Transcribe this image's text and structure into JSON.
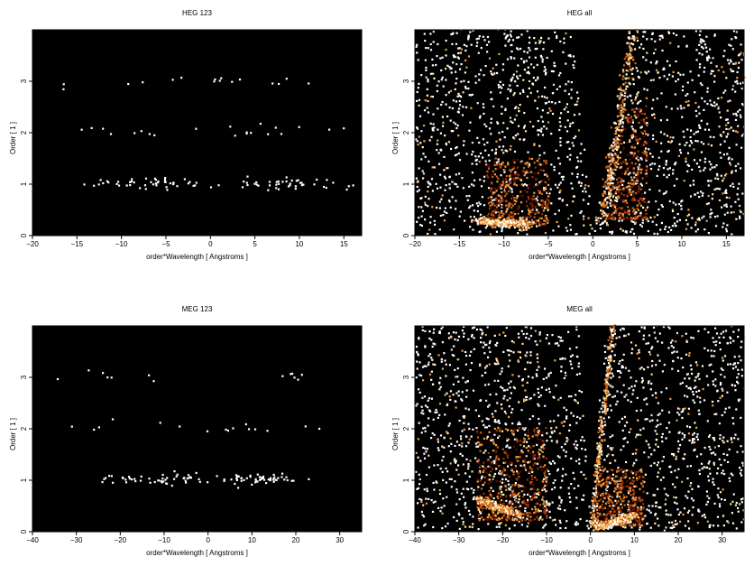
{
  "chart_data": [
    {
      "type": "heatmap",
      "title": "HEG 123",
      "xlabel": "order*Wavelength [ Angstroms ]",
      "ylabel": "Order [ 1 ]",
      "xlim": [
        -20,
        17
      ],
      "ylim": [
        0,
        4
      ],
      "xticks": [
        "−20",
        "−15",
        "−10",
        "−5",
        "0",
        "5",
        "10",
        "15"
      ],
      "xtick_values": [
        -20,
        -15,
        -10,
        -5,
        0,
        5,
        10,
        15
      ],
      "yticks": [
        "0",
        "1",
        "2",
        "3"
      ],
      "ytick_values": [
        0,
        1,
        2,
        3
      ],
      "background": "#000000",
      "density_features": [
        {
          "order": 1,
          "x_range": [
            -16,
            16
          ],
          "peak_x": [
            -8,
            8
          ],
          "density": 0.35
        },
        {
          "order": 2,
          "x_range": [
            -17,
            16
          ],
          "peak_x": [
            -10,
            5
          ],
          "density": 0.08
        },
        {
          "order": 3,
          "x_range": [
            -17,
            16
          ],
          "peak_x": [
            -5,
            5
          ],
          "density": 0.06
        }
      ]
    },
    {
      "type": "heatmap",
      "title": "HEG all",
      "xlabel": "order*Wavelength [ Angstroms ]",
      "ylabel": "Order [ 1 ]",
      "xlim": [
        -20,
        17
      ],
      "ylim": [
        0,
        4
      ],
      "xticks": [
        "−20",
        "−15",
        "−10",
        "−5",
        "0",
        "5",
        "10",
        "15"
      ],
      "xtick_values": [
        -20,
        -15,
        -10,
        -5,
        0,
        5,
        10,
        15
      ],
      "yticks": [
        "0",
        "1",
        "2",
        "3"
      ],
      "ytick_values": [
        0,
        1,
        2,
        3
      ],
      "background": "#000000",
      "colormap": [
        "#5a0a00",
        "#a03000",
        "#d06010",
        "#f0a040",
        "#ffe0a0",
        "#ffffff"
      ],
      "features": {
        "empty_wedge": {
          "apex_x": 0,
          "apex_y": 0,
          "top_x_range": [
            -2.5,
            4.5
          ]
        },
        "bright_streaks": [
          {
            "from": [
              -13,
              0.25
            ],
            "to": [
              -7,
              0.2
            ]
          },
          {
            "from": [
              1,
              0.2
            ],
            "to": [
              4.5,
              4
            ]
          }
        ],
        "warm_regions": [
          {
            "x_range": [
              -12,
              -5
            ],
            "y_range": [
              0.2,
              1.5
            ]
          },
          {
            "x_range": [
              1,
              6
            ],
            "y_range": [
              0.3,
              2.5
            ]
          }
        ]
      }
    },
    {
      "type": "heatmap",
      "title": "MEG 123",
      "xlabel": "order*Wavelength [ Angstroms ]",
      "ylabel": "Order [ 1 ]",
      "xlim": [
        -40,
        35
      ],
      "ylim": [
        0,
        4
      ],
      "xticks": [
        "−40",
        "−30",
        "−20",
        "−10",
        "0",
        "10",
        "20",
        "30"
      ],
      "xtick_values": [
        -40,
        -30,
        -20,
        -10,
        0,
        10,
        20,
        30
      ],
      "yticks": [
        "0",
        "1",
        "2",
        "3"
      ],
      "ytick_values": [
        0,
        1,
        2,
        3
      ],
      "background": "#000000",
      "density_features": [
        {
          "order": 1,
          "x_range": [
            -25,
            20
          ],
          "peak_x": [
            -12,
            12
          ],
          "density": 0.4
        },
        {
          "order": 2,
          "x_range": [
            -35,
            32
          ],
          "peak_x": [
            -20,
            10
          ],
          "density": 0.06
        },
        {
          "order": 3,
          "x_range": [
            -36,
            33
          ],
          "peak_x": [
            -25,
            20
          ],
          "density": 0.05
        }
      ]
    },
    {
      "type": "heatmap",
      "title": "MEG all",
      "xlabel": "order*Wavelength [ Angstroms ]",
      "ylabel": "Order [ 1 ]",
      "xlim": [
        -40,
        35
      ],
      "ylim": [
        0,
        4
      ],
      "xticks": [
        "−40",
        "−30",
        "−20",
        "−10",
        "0",
        "10",
        "20",
        "30"
      ],
      "xtick_values": [
        -40,
        -30,
        -20,
        -10,
        0,
        10,
        20,
        30
      ],
      "yticks": [
        "0",
        "1",
        "2",
        "3"
      ],
      "ytick_values": [
        0,
        1,
        2,
        3
      ],
      "background": "#000000",
      "colormap": [
        "#5a0a00",
        "#a03000",
        "#d06010",
        "#f0a040",
        "#ffe0a0",
        "#ffffff"
      ],
      "features": {
        "empty_wedge": {
          "apex_x": 0,
          "apex_y": 0,
          "top_x_range": [
            -3,
            3
          ]
        },
        "bright_streaks": [
          {
            "from": [
              -26,
              0.6
            ],
            "to": [
              -16,
              0.3
            ]
          },
          {
            "from": [
              1,
              0.05
            ],
            "to": [
              10,
              0.3
            ]
          },
          {
            "from": [
              0,
              0.1
            ],
            "to": [
              5,
              4
            ]
          }
        ],
        "warm_regions": [
          {
            "x_range": [
              -26,
              -10
            ],
            "y_range": [
              0.2,
              2.0
            ]
          },
          {
            "x_range": [
              0,
              12
            ],
            "y_range": [
              0.1,
              1.2
            ]
          }
        ]
      }
    }
  ]
}
